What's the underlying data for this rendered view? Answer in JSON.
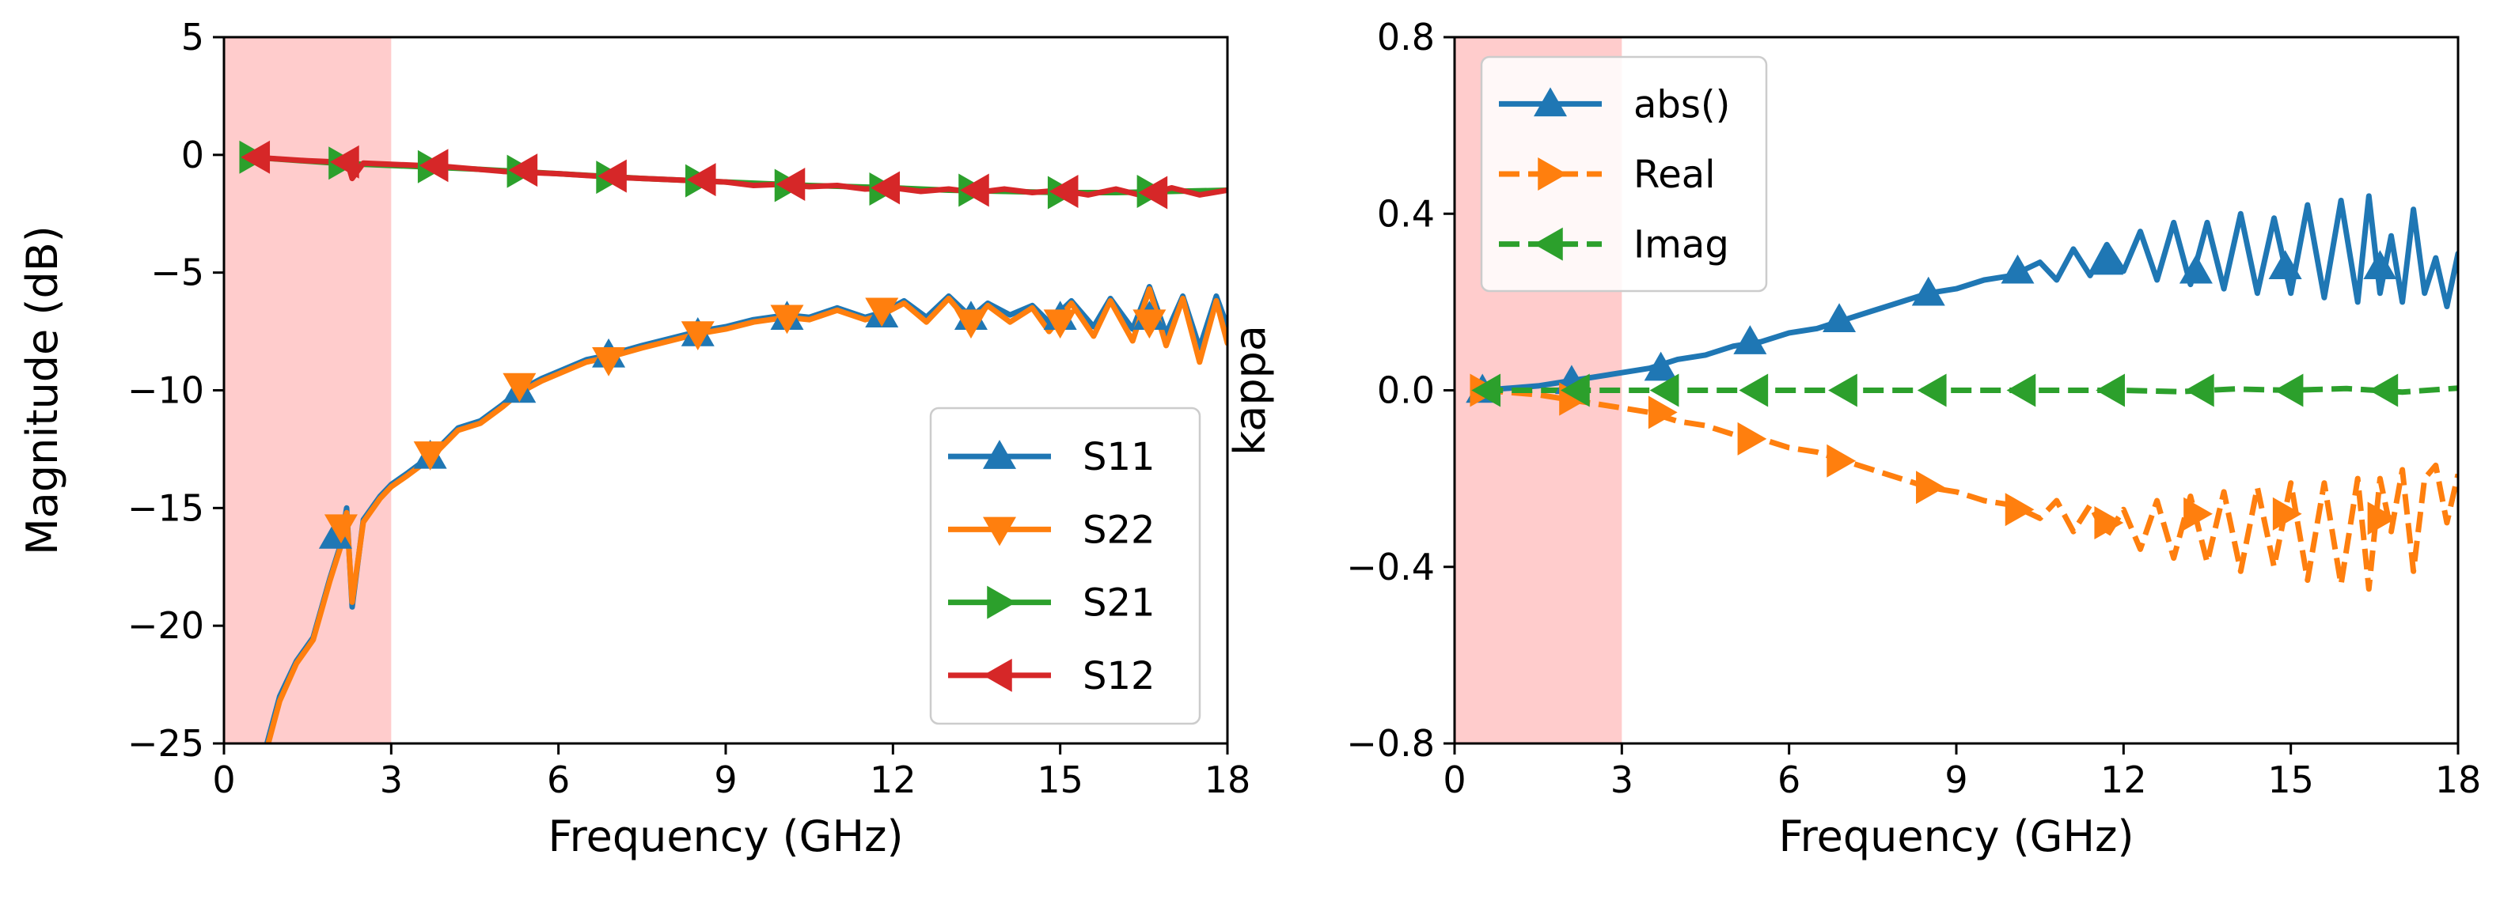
{
  "chart_data": [
    {
      "type": "line",
      "xlabel": "Frequency (GHz)",
      "ylabel": "Magnitude (dB)",
      "xlim": [
        0,
        18
      ],
      "ylim": [
        -25,
        5
      ],
      "xticks": [
        "0",
        "3",
        "6",
        "9",
        "12",
        "15",
        "18"
      ],
      "yticks": [
        "5",
        "0",
        "−5",
        "−10",
        "−15",
        "−20",
        "−25"
      ],
      "shaded_band": {
        "x": [
          0,
          3
        ],
        "color": "#ffcccc"
      },
      "legend_position": "lower-right",
      "series": [
        {
          "name": "S11",
          "color": "#1f77b4",
          "marker": "triangle-up",
          "linestyle": "solid",
          "x": [
            0.5,
            0.75,
            1.0,
            1.3,
            1.6,
            1.9,
            2.1,
            2.2,
            2.3,
            2.5,
            2.8,
            3.0,
            3.3,
            3.7,
            4.2,
            4.6,
            5.0,
            5.3,
            5.7,
            6.0,
            6.5,
            6.9,
            7.5,
            8.0,
            8.5,
            9.0,
            9.5,
            10.1,
            10.5,
            11.0,
            11.5,
            11.8,
            12.2,
            12.6,
            13.0,
            13.4,
            13.7,
            14.1,
            14.5,
            14.8,
            15.2,
            15.6,
            15.9,
            16.3,
            16.6,
            16.9,
            17.2,
            17.5,
            17.8,
            18.0
          ],
          "y": [
            -28,
            -25.2,
            -23,
            -21.5,
            -20.5,
            -18.0,
            -16.5,
            -15.0,
            -19.2,
            -15.5,
            -14.5,
            -14.0,
            -13.5,
            -12.8,
            -11.6,
            -11.3,
            -10.6,
            -10.0,
            -9.5,
            -9.2,
            -8.7,
            -8.5,
            -8.1,
            -7.8,
            -7.5,
            -7.3,
            -7.0,
            -6.8,
            -6.9,
            -6.5,
            -6.9,
            -6.7,
            -6.2,
            -6.9,
            -6.0,
            -6.9,
            -6.3,
            -6.8,
            -6.4,
            -7.1,
            -6.2,
            -7.3,
            -6.1,
            -7.4,
            -5.6,
            -7.6,
            -6.0,
            -8.2,
            -6.0,
            -7.3
          ],
          "marker_x": [
            2.0,
            3.7,
            5.3,
            6.9,
            8.5,
            10.1,
            11.8,
            13.4,
            15.0,
            16.6
          ],
          "marker_y": [
            -16.2,
            -12.8,
            -10.0,
            -8.5,
            -7.6,
            -6.9,
            -6.8,
            -6.9,
            -6.9,
            -6.9
          ]
        },
        {
          "name": "S22",
          "color": "#ff7f0e",
          "marker": "triangle-down",
          "linestyle": "solid",
          "x": [
            0.5,
            0.75,
            1.0,
            1.3,
            1.6,
            1.9,
            2.1,
            2.2,
            2.3,
            2.5,
            2.8,
            3.0,
            3.3,
            3.7,
            4.2,
            4.6,
            5.0,
            5.3,
            5.7,
            6.0,
            6.5,
            6.9,
            7.5,
            8.0,
            8.5,
            9.0,
            9.5,
            10.1,
            10.5,
            11.0,
            11.5,
            11.8,
            12.2,
            12.6,
            13.0,
            13.4,
            13.7,
            14.1,
            14.5,
            14.8,
            15.2,
            15.6,
            15.9,
            16.3,
            16.6,
            16.9,
            17.2,
            17.5,
            17.8,
            18.0
          ],
          "y": [
            -28,
            -25.4,
            -23.2,
            -21.6,
            -20.6,
            -18.1,
            -16.6,
            -15.2,
            -19.0,
            -15.6,
            -14.6,
            -14.1,
            -13.6,
            -12.9,
            -11.7,
            -11.4,
            -10.7,
            -10.1,
            -9.6,
            -9.3,
            -8.8,
            -8.6,
            -8.2,
            -7.9,
            -7.6,
            -7.4,
            -7.1,
            -6.9,
            -7.0,
            -6.6,
            -7.0,
            -6.8,
            -6.3,
            -7.1,
            -6.1,
            -7.2,
            -6.4,
            -7.1,
            -6.5,
            -7.5,
            -6.3,
            -7.7,
            -6.2,
            -7.9,
            -5.7,
            -8.1,
            -6.1,
            -8.8,
            -6.2,
            -8.0
          ],
          "marker_x": [
            2.1,
            3.7,
            5.3,
            6.9,
            8.5,
            10.1,
            11.8,
            13.4,
            15.0,
            16.6
          ],
          "marker_y": [
            -15.8,
            -12.7,
            -9.8,
            -8.7,
            -7.6,
            -6.9,
            -6.6,
            -7.1,
            -7.1,
            -7.1
          ]
        },
        {
          "name": "S21",
          "color": "#2ca02c",
          "marker": "triangle-right",
          "linestyle": "solid",
          "x": [
            0.5,
            2.0,
            3.0,
            4.5,
            6.0,
            7.5,
            9.0,
            10.5,
            12.0,
            13.0,
            14.0,
            15.0,
            16.0,
            17.0,
            18.0
          ],
          "y": [
            -0.1,
            -0.35,
            -0.45,
            -0.6,
            -0.8,
            -1.0,
            -1.15,
            -1.3,
            -1.4,
            -1.5,
            -1.55,
            -1.6,
            -1.6,
            -1.55,
            -1.5
          ],
          "marker_x": [
            0.5,
            2.1,
            3.7,
            5.3,
            6.9,
            8.5,
            10.1,
            11.8,
            13.4,
            15.0,
            16.6
          ],
          "marker_y": [
            -0.1,
            -0.35,
            -0.5,
            -0.7,
            -0.95,
            -1.1,
            -1.3,
            -1.45,
            -1.5,
            -1.6,
            -1.55
          ]
        },
        {
          "name": "S12",
          "color": "#d62728",
          "marker": "triangle-left",
          "linestyle": "solid",
          "x": [
            0.5,
            1.5,
            2.0,
            2.2,
            2.3,
            2.5,
            3.0,
            4.0,
            5.0,
            6.0,
            7.0,
            8.0,
            9.0,
            9.5,
            10.0,
            10.5,
            11.0,
            11.5,
            12.0,
            12.5,
            13.0,
            13.5,
            14.0,
            14.5,
            15.0,
            15.5,
            16.0,
            16.5,
            17.0,
            17.5,
            18.0
          ],
          "y": [
            -0.1,
            -0.25,
            -0.3,
            -0.2,
            -1.0,
            -0.35,
            -0.4,
            -0.5,
            -0.7,
            -0.8,
            -0.95,
            -1.05,
            -1.15,
            -1.3,
            -1.25,
            -1.35,
            -1.3,
            -1.45,
            -1.4,
            -1.55,
            -1.45,
            -1.6,
            -1.45,
            -1.6,
            -1.5,
            -1.7,
            -1.45,
            -1.75,
            -1.4,
            -1.7,
            -1.5
          ],
          "marker_x": [
            0.6,
            2.2,
            3.8,
            5.4,
            7.0,
            8.6,
            10.2,
            11.9,
            13.5,
            15.1,
            16.7
          ],
          "marker_y": [
            -0.1,
            -0.3,
            -0.45,
            -0.65,
            -0.9,
            -1.05,
            -1.25,
            -1.4,
            -1.5,
            -1.55,
            -1.6
          ]
        }
      ]
    },
    {
      "type": "line",
      "xlabel": "Frequency (GHz)",
      "ylabel": "kappa",
      "xlim": [
        0,
        18
      ],
      "ylim": [
        -0.8,
        0.8
      ],
      "xticks": [
        "0",
        "3",
        "6",
        "9",
        "12",
        "15",
        "18"
      ],
      "yticks": [
        "0.8",
        "0.4",
        "0.0",
        "−0.4",
        "−0.8"
      ],
      "shaded_band": {
        "x": [
          0,
          3
        ],
        "color": "#ffcccc"
      },
      "legend_position": "upper-left",
      "series": [
        {
          "name": "abs()",
          "color": "#1f77b4",
          "marker": "triangle-up",
          "linestyle": "solid",
          "x": [
            0.5,
            1.0,
            1.5,
            2.0,
            2.5,
            3.0,
            3.5,
            4.0,
            4.5,
            5.0,
            5.5,
            6.0,
            6.5,
            7.0,
            7.5,
            8.0,
            8.5,
            9.0,
            9.5,
            10.0,
            10.5,
            10.8,
            11.1,
            11.4,
            11.7,
            12.0,
            12.3,
            12.6,
            12.9,
            13.2,
            13.5,
            13.8,
            14.1,
            14.4,
            14.7,
            15.0,
            15.3,
            15.6,
            15.9,
            16.2,
            16.4,
            16.6,
            16.8,
            17.0,
            17.2,
            17.4,
            17.6,
            17.8,
            18.0
          ],
          "y": [
            0.0,
            0.005,
            0.01,
            0.02,
            0.03,
            0.04,
            0.05,
            0.07,
            0.08,
            0.1,
            0.11,
            0.13,
            0.14,
            0.16,
            0.18,
            0.2,
            0.22,
            0.23,
            0.25,
            0.26,
            0.29,
            0.25,
            0.32,
            0.26,
            0.33,
            0.27,
            0.36,
            0.25,
            0.38,
            0.24,
            0.38,
            0.23,
            0.4,
            0.22,
            0.39,
            0.22,
            0.42,
            0.21,
            0.43,
            0.2,
            0.44,
            0.22,
            0.35,
            0.2,
            0.41,
            0.22,
            0.3,
            0.19,
            0.31
          ],
          "marker_x": [
            0.5,
            2.1,
            3.7,
            5.3,
            6.9,
            8.5,
            10.1,
            11.7,
            13.3,
            14.9,
            16.6
          ],
          "marker_y": [
            0.0,
            0.02,
            0.05,
            0.11,
            0.16,
            0.22,
            0.27,
            0.29,
            0.27,
            0.28,
            0.28
          ]
        },
        {
          "name": "Real",
          "color": "#ff7f0e",
          "marker": "triangle-right",
          "linestyle": "dashed",
          "x": [
            0.5,
            1.0,
            1.5,
            2.0,
            2.5,
            3.0,
            3.5,
            4.0,
            4.5,
            5.0,
            5.5,
            6.0,
            6.5,
            7.0,
            7.5,
            8.0,
            8.5,
            9.0,
            9.5,
            10.0,
            10.5,
            10.8,
            11.1,
            11.4,
            11.7,
            12.0,
            12.3,
            12.6,
            12.9,
            13.2,
            13.5,
            13.8,
            14.1,
            14.4,
            14.7,
            15.0,
            15.3,
            15.6,
            15.9,
            16.2,
            16.4,
            16.6,
            16.8,
            17.0,
            17.2,
            17.4,
            17.6,
            17.8,
            18.0
          ],
          "y": [
            0.0,
            -0.005,
            -0.01,
            -0.02,
            -0.03,
            -0.04,
            -0.05,
            -0.07,
            -0.08,
            -0.1,
            -0.11,
            -0.13,
            -0.14,
            -0.16,
            -0.18,
            -0.2,
            -0.22,
            -0.23,
            -0.25,
            -0.26,
            -0.29,
            -0.25,
            -0.32,
            -0.26,
            -0.33,
            -0.27,
            -0.36,
            -0.25,
            -0.38,
            -0.24,
            -0.39,
            -0.23,
            -0.41,
            -0.22,
            -0.4,
            -0.21,
            -0.43,
            -0.21,
            -0.44,
            -0.2,
            -0.45,
            -0.2,
            -0.32,
            -0.18,
            -0.41,
            -0.2,
            -0.17,
            -0.3,
            -0.19
          ],
          "marker_x": [
            0.5,
            2.1,
            3.7,
            5.3,
            6.9,
            8.5,
            10.1,
            11.7,
            13.3,
            14.9,
            16.6
          ],
          "marker_y": [
            0.0,
            -0.02,
            -0.05,
            -0.11,
            -0.16,
            -0.22,
            -0.27,
            -0.3,
            -0.28,
            -0.28,
            -0.29
          ]
        },
        {
          "name": "Imag",
          "color": "#2ca02c",
          "marker": "triangle-left",
          "linestyle": "dashed",
          "x": [
            0.5,
            3.0,
            6.0,
            9.0,
            12.0,
            13.0,
            14.0,
            15.0,
            16.0,
            17.0,
            18.0
          ],
          "y": [
            0.0,
            0.0,
            0.0,
            0.0,
            0.0,
            -0.003,
            0.003,
            0.0,
            0.004,
            -0.004,
            0.005
          ],
          "marker_x": [
            0.6,
            2.2,
            3.8,
            5.4,
            7.0,
            8.6,
            10.2,
            11.8,
            13.4,
            15.0,
            16.7
          ],
          "marker_y": [
            0.0,
            0.0,
            0.0,
            0.0,
            0.0,
            0.0,
            0.0,
            0.0,
            0.0,
            0.0,
            0.0
          ]
        }
      ]
    }
  ]
}
